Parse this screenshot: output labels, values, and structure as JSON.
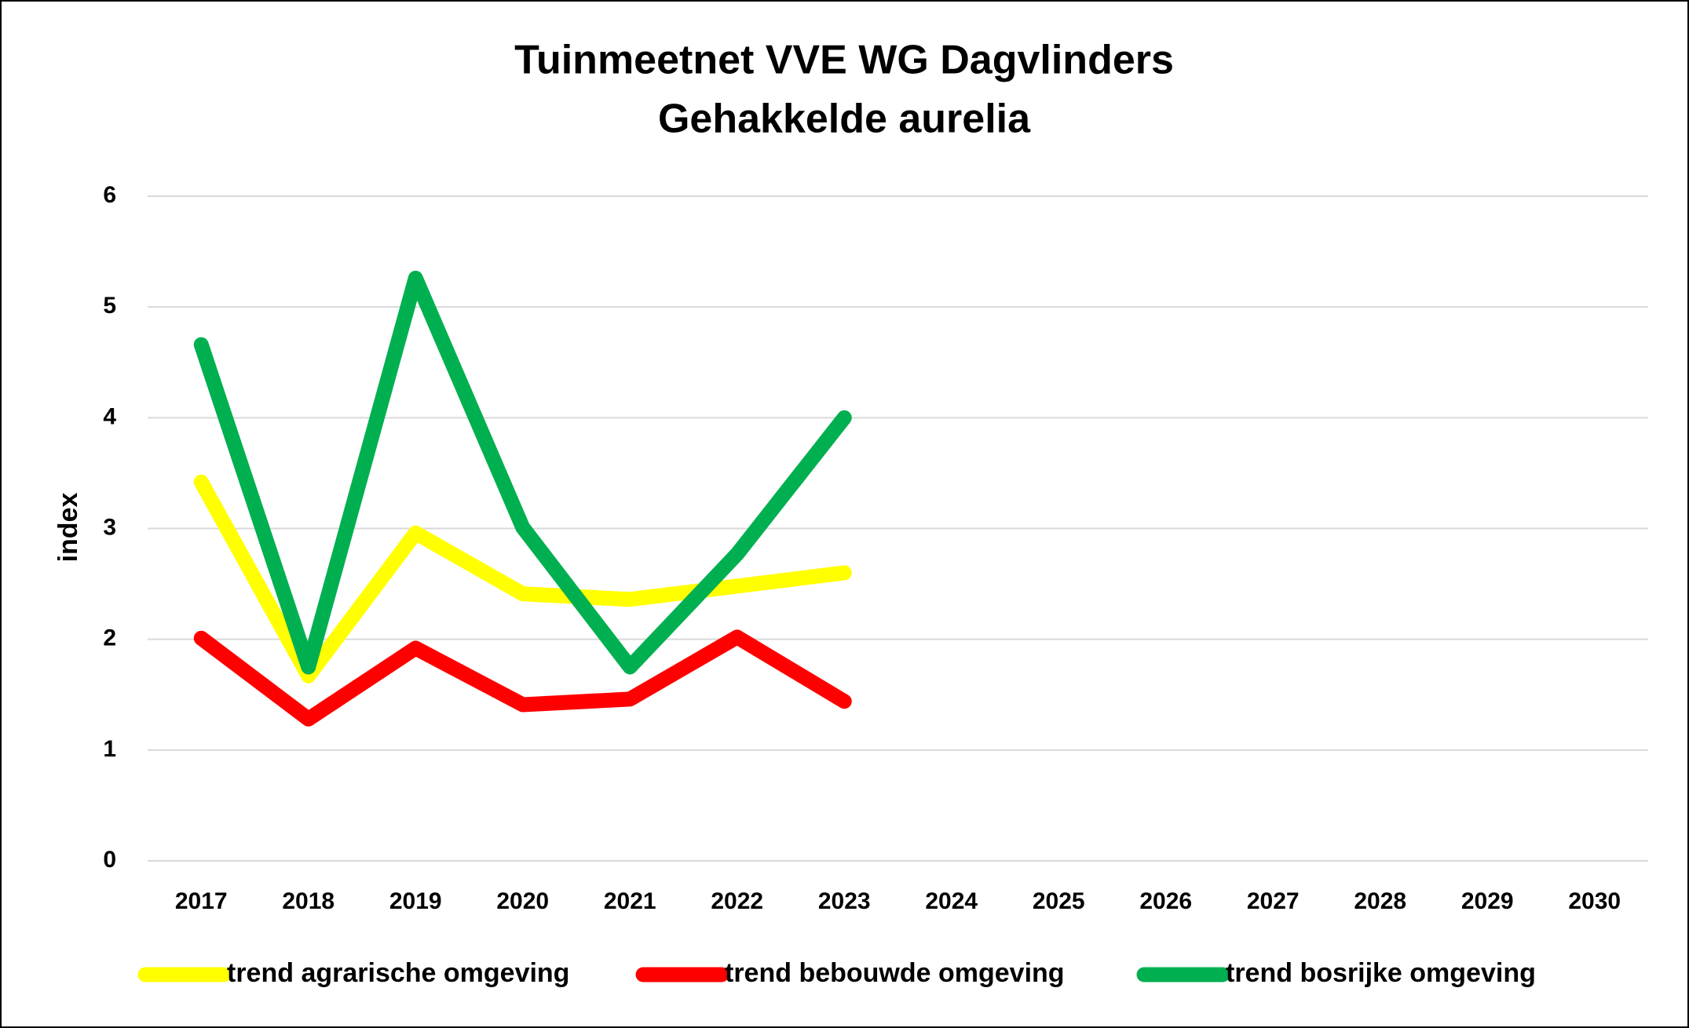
{
  "chart_data": {
    "type": "line",
    "title": [
      "Tuinmeetnet VVE WG Dagvlinders",
      "Gehakkelde aurelia"
    ],
    "y_label": "index",
    "categories": [
      "2017",
      "2018",
      "2019",
      "2020",
      "2021",
      "2022",
      "2023",
      "2024",
      "2025",
      "2026",
      "2027",
      "2028",
      "2029",
      "2030"
    ],
    "series": [
      {
        "name": "trend agrarische omgeving",
        "color": "#ffff00",
        "values": [
          3.42,
          1.67,
          2.96,
          2.41,
          2.36,
          2.48,
          2.6,
          null,
          null,
          null,
          null,
          null,
          null,
          null
        ]
      },
      {
        "name": "trend bebouwde omgeving",
        "color": "#ff0000",
        "values": [
          2.01,
          1.28,
          1.92,
          1.41,
          1.46,
          2.02,
          1.44,
          null,
          null,
          null,
          null,
          null,
          null,
          null
        ]
      },
      {
        "name": "trend bosrijke omgeving",
        "color": "#00b050",
        "values": [
          4.66,
          1.75,
          5.26,
          3.01,
          1.75,
          2.77,
          4.0,
          null,
          null,
          null,
          null,
          null,
          null,
          null
        ]
      }
    ],
    "ylim": [
      0,
      6
    ],
    "yticks": [
      0,
      1,
      2,
      3,
      4,
      5,
      6
    ],
    "grid": true,
    "legend": "bottom"
  }
}
